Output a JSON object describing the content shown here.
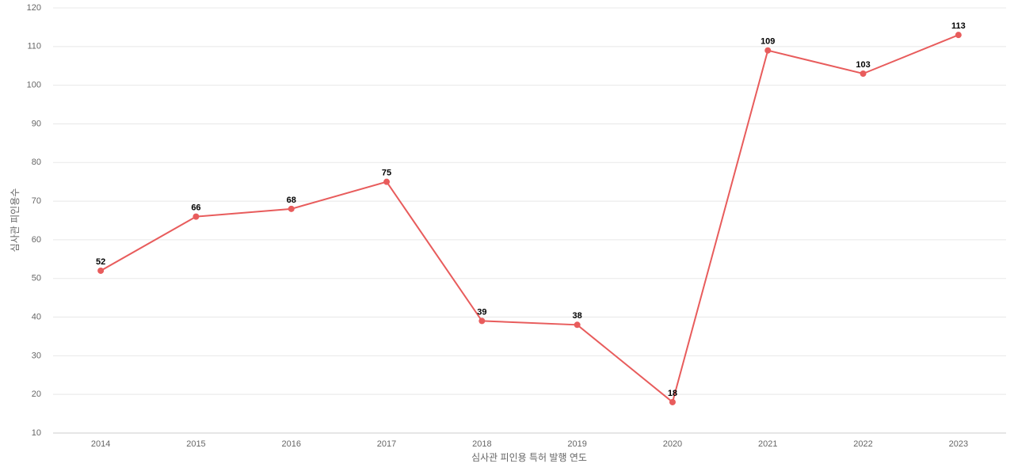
{
  "chart_data": {
    "type": "line",
    "x_label": "심사관 피인용 특허 발행 연도",
    "y_label": "심사관 피인용수",
    "categories": [
      "2014",
      "2015",
      "2016",
      "2017",
      "2018",
      "2019",
      "2020",
      "2021",
      "2022",
      "2023"
    ],
    "series": [
      {
        "name": "심사관 피인용수",
        "color": "#e85c5c",
        "values": [
          52,
          66,
          68,
          75,
          39,
          38,
          18,
          109,
          103,
          113
        ]
      }
    ],
    "ylim": [
      10,
      120
    ],
    "yticks": [
      10,
      20,
      30,
      40,
      50,
      60,
      70,
      80,
      90,
      100,
      110,
      120
    ],
    "grid": true
  }
}
